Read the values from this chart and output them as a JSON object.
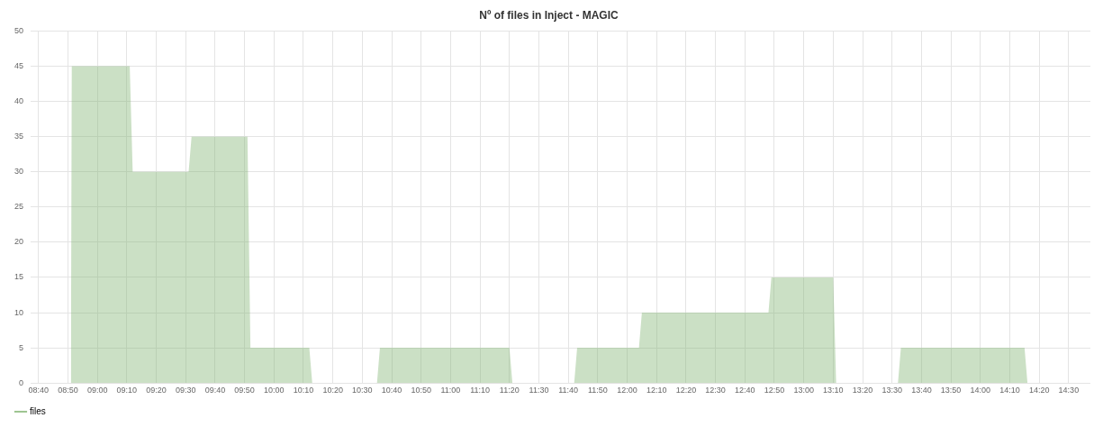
{
  "chart_data": {
    "type": "area",
    "title": "Nº of files in Inject - MAGIC",
    "series": [
      {
        "name": "files",
        "color": "#7eb26d",
        "x": [
          8.85,
          8.855,
          9.1833,
          9.2,
          9.5167,
          9.5333,
          9.85,
          9.8667,
          10.2,
          10.2167,
          10.5833,
          10.6,
          11.3333,
          11.35,
          11.7,
          11.7167,
          12.0667,
          12.0833,
          12.8,
          12.8167,
          13.1667,
          13.1833,
          13.5333,
          13.55,
          14.25,
          14.2667
        ],
        "values": [
          0,
          45,
          45,
          30,
          30,
          35,
          35,
          5,
          5,
          0,
          0,
          5,
          5,
          0,
          0,
          5,
          5,
          10,
          10,
          15,
          15,
          0,
          0,
          5,
          5,
          0
        ]
      }
    ],
    "xlim": [
      8.622,
      14.623
    ],
    "xticks": [
      {
        "value": 8.6667,
        "label": "08:40"
      },
      {
        "value": 8.8333,
        "label": "08:50"
      },
      {
        "value": 9,
        "label": "09:00"
      },
      {
        "value": 9.1667,
        "label": "09:10"
      },
      {
        "value": 9.3333,
        "label": "09:20"
      },
      {
        "value": 9.5,
        "label": "09:30"
      },
      {
        "value": 9.6667,
        "label": "09:40"
      },
      {
        "value": 9.8333,
        "label": "09:50"
      },
      {
        "value": 10,
        "label": "10:00"
      },
      {
        "value": 10.1667,
        "label": "10:10"
      },
      {
        "value": 10.3333,
        "label": "10:20"
      },
      {
        "value": 10.5,
        "label": "10:30"
      },
      {
        "value": 10.6667,
        "label": "10:40"
      },
      {
        "value": 10.8333,
        "label": "10:50"
      },
      {
        "value": 11,
        "label": "11:00"
      },
      {
        "value": 11.1667,
        "label": "11:10"
      },
      {
        "value": 11.3333,
        "label": "11:20"
      },
      {
        "value": 11.5,
        "label": "11:30"
      },
      {
        "value": 11.6667,
        "label": "11:40"
      },
      {
        "value": 11.8333,
        "label": "11:50"
      },
      {
        "value": 12,
        "label": "12:00"
      },
      {
        "value": 12.1667,
        "label": "12:10"
      },
      {
        "value": 12.3333,
        "label": "12:20"
      },
      {
        "value": 12.5,
        "label": "12:30"
      },
      {
        "value": 12.6667,
        "label": "12:40"
      },
      {
        "value": 12.8333,
        "label": "12:50"
      },
      {
        "value": 13,
        "label": "13:00"
      },
      {
        "value": 13.1667,
        "label": "13:10"
      },
      {
        "value": 13.3333,
        "label": "13:20"
      },
      {
        "value": 13.5,
        "label": "13:30"
      },
      {
        "value": 13.6667,
        "label": "13:40"
      },
      {
        "value": 13.8333,
        "label": "13:50"
      },
      {
        "value": 14,
        "label": "14:00"
      },
      {
        "value": 14.1667,
        "label": "14:10"
      },
      {
        "value": 14.3333,
        "label": "14:20"
      },
      {
        "value": 14.5,
        "label": "14:30"
      }
    ],
    "ylim": [
      0,
      50
    ],
    "yticks": [
      0,
      5,
      10,
      15,
      20,
      25,
      30,
      35,
      40,
      45,
      50
    ],
    "grid": true,
    "legend": "bottom left"
  }
}
